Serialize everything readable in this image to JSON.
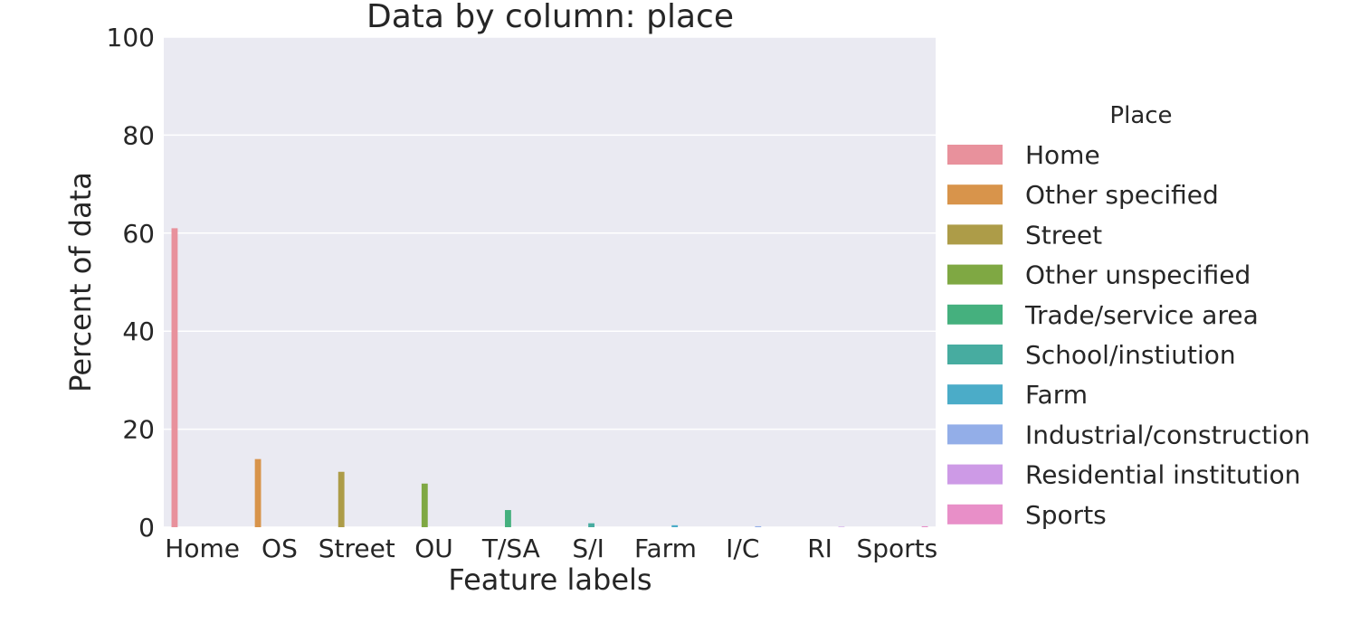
{
  "chart_data": {
    "type": "bar",
    "title": "Data by column: place",
    "xlabel": "Feature labels",
    "ylabel": "Percent of data",
    "ylim": [
      0,
      100
    ],
    "yticks": [
      0,
      20,
      40,
      60,
      80,
      100
    ],
    "grid": true,
    "legend_title": "Place",
    "legend_position": "right",
    "categories": [
      "Home",
      "OS",
      "Street",
      "OU",
      "T/SA",
      "S/I",
      "Farm",
      "I/C",
      "RI",
      "Sports"
    ],
    "series": [
      {
        "name": "Home",
        "color": "#e8919c",
        "values": [
          61.0,
          0,
          0,
          0,
          0,
          0,
          0,
          0,
          0,
          0
        ]
      },
      {
        "name": "Other specified",
        "color": "#d8944b",
        "values": [
          0,
          13.9,
          0,
          0,
          0,
          0,
          0,
          0,
          0,
          0
        ]
      },
      {
        "name": "Street",
        "color": "#ad9c48",
        "values": [
          0,
          0,
          11.3,
          0,
          0,
          0,
          0,
          0,
          0,
          0
        ]
      },
      {
        "name": "Other unspecified",
        "color": "#7fa843",
        "values": [
          0,
          0,
          0,
          8.9,
          0,
          0,
          0,
          0,
          0,
          0
        ]
      },
      {
        "name": "Trade/service area",
        "color": "#45b07e",
        "values": [
          0,
          0,
          0,
          0,
          3.5,
          0,
          0,
          0,
          0,
          0
        ]
      },
      {
        "name": "School/instiution",
        "color": "#47aca0",
        "values": [
          0,
          0,
          0,
          0,
          0,
          0.8,
          0,
          0,
          0,
          0
        ]
      },
      {
        "name": "Farm",
        "color": "#4bacc8",
        "values": [
          0,
          0,
          0,
          0,
          0,
          0,
          0.4,
          0,
          0,
          0
        ]
      },
      {
        "name": "Industrial/construction",
        "color": "#93aee8",
        "values": [
          0,
          0,
          0,
          0,
          0,
          0,
          0,
          0.2,
          0,
          0
        ]
      },
      {
        "name": "Residential institution",
        "color": "#cd9ae6",
        "values": [
          0,
          0,
          0,
          0,
          0,
          0,
          0,
          0,
          0.1,
          0
        ]
      },
      {
        "name": "Sports",
        "color": "#e88fc8",
        "values": [
          0,
          0,
          0,
          0,
          0,
          0,
          0,
          0,
          0,
          0.2
        ]
      }
    ]
  },
  "colors": {
    "plot_background": "#eaeaf2",
    "grid": "#ffffff",
    "text": "#262626"
  }
}
